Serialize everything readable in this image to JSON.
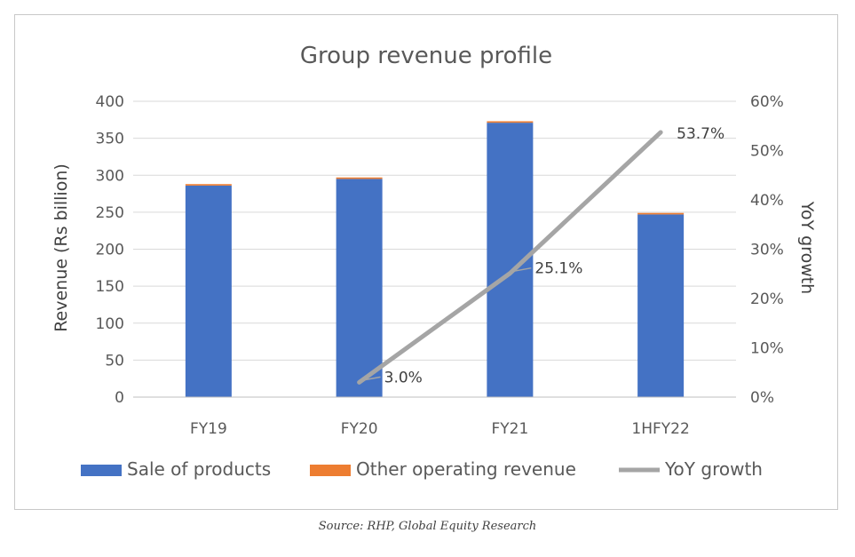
{
  "chart_data": {
    "type": "bar",
    "stacked": true,
    "title": "Group revenue profile",
    "categories": [
      "FY19",
      "FY20",
      "FY21",
      "1HFY22"
    ],
    "series": [
      {
        "name": "Sale of products",
        "type": "bar",
        "axis": "left",
        "color": "#4472c4",
        "values": [
          286,
          295,
          371,
          247
        ]
      },
      {
        "name": "Other operating revenue",
        "type": "bar",
        "axis": "left",
        "color": "#ed7d31",
        "values": [
          2,
          2,
          2,
          2
        ]
      },
      {
        "name": "YoY growth",
        "type": "line",
        "axis": "right",
        "color": "#a5a5a5",
        "values": [
          null,
          3.0,
          25.1,
          53.7
        ]
      }
    ],
    "line_labels": [
      "",
      "3.0%",
      "25.1%",
      "53.7%"
    ],
    "ylabel": "Revenue (Rs billion)",
    "y2label": "YoY growth",
    "ylim": [
      0,
      400
    ],
    "yticks": [
      "0",
      "50",
      "100",
      "150",
      "200",
      "250",
      "300",
      "350",
      "400"
    ],
    "y2lim": [
      0,
      60
    ],
    "y2ticks": [
      "0%",
      "10%",
      "20%",
      "30%",
      "40%",
      "50%",
      "60%"
    ],
    "grid": true,
    "legend": "bottom"
  },
  "source_note": "Source: RHP, Global Equity Research"
}
